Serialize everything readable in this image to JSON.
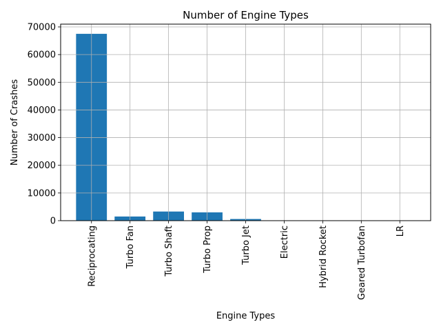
{
  "chart_data": {
    "type": "bar",
    "title": "Number of Engine Types",
    "xlabel": "Engine Types",
    "ylabel": "Number of Crashes",
    "categories": [
      "Reciprocating",
      "Turbo Fan",
      "Turbo Shaft",
      "Turbo Prop",
      "Turbo Jet",
      "Electric",
      "Hybrid Rocket",
      "Geared Turbofan",
      "LR"
    ],
    "values": [
      67500,
      1500,
      3300,
      3000,
      600,
      10,
      1,
      12,
      2
    ],
    "ylim": [
      0,
      71000
    ],
    "yticks": [
      0,
      10000,
      20000,
      30000,
      40000,
      50000,
      60000,
      70000
    ],
    "ytick_labels": [
      "0",
      "10000",
      "20000",
      "30000",
      "40000",
      "50000",
      "60000",
      "70000"
    ],
    "grid": true,
    "bar_color": "#1f77b4",
    "grid_color": "#b0b0b0"
  }
}
